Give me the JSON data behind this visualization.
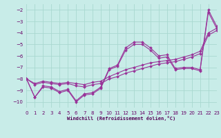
{
  "background_color": "#c8ece8",
  "grid_color": "#a8d8d0",
  "line_color": "#993399",
  "xlim": [
    0,
    23
  ],
  "ylim": [
    -10.5,
    -1.5
  ],
  "ytick_vals": [
    -10,
    -9,
    -8,
    -7,
    -6,
    -5,
    -4,
    -3,
    -2
  ],
  "xtick_vals": [
    0,
    1,
    2,
    3,
    4,
    5,
    6,
    7,
    8,
    9,
    10,
    11,
    12,
    13,
    14,
    15,
    16,
    17,
    18,
    19,
    20,
    21,
    22,
    23
  ],
  "xlabel": "Windchill (Refroidissement éolien,°C)",
  "s1_y": [
    -8.0,
    -9.6,
    -8.7,
    -8.8,
    -9.2,
    -9.0,
    -10.0,
    -9.4,
    -9.3,
    -8.8,
    -7.2,
    -6.9,
    -5.5,
    -5.0,
    -5.0,
    -5.5,
    -6.2,
    -6.1,
    -7.2,
    -7.1,
    -7.1,
    -7.3,
    -2.2,
    -3.6
  ],
  "s2_y": [
    -8.0,
    -9.6,
    -8.6,
    -8.7,
    -9.1,
    -8.9,
    -9.9,
    -9.3,
    -9.2,
    -8.7,
    -7.1,
    -6.8,
    -5.3,
    -4.8,
    -4.8,
    -5.3,
    -6.0,
    -5.9,
    -7.1,
    -7.0,
    -7.0,
    -7.2,
    -2.0,
    -3.4
  ],
  "s3_y": [
    -8.0,
    -8.4,
    -8.2,
    -8.3,
    -8.4,
    -8.3,
    -8.4,
    -8.5,
    -8.3,
    -8.2,
    -7.8,
    -7.5,
    -7.2,
    -7.0,
    -6.8,
    -6.6,
    -6.5,
    -6.4,
    -6.3,
    -6.1,
    -5.9,
    -5.6,
    -4.0,
    -3.6
  ],
  "s4_y": [
    -8.0,
    -8.5,
    -8.3,
    -8.4,
    -8.5,
    -8.4,
    -8.6,
    -8.7,
    -8.5,
    -8.4,
    -8.0,
    -7.8,
    -7.5,
    -7.3,
    -7.1,
    -6.9,
    -6.7,
    -6.6,
    -6.5,
    -6.3,
    -6.1,
    -5.8,
    -4.2,
    -3.8
  ]
}
